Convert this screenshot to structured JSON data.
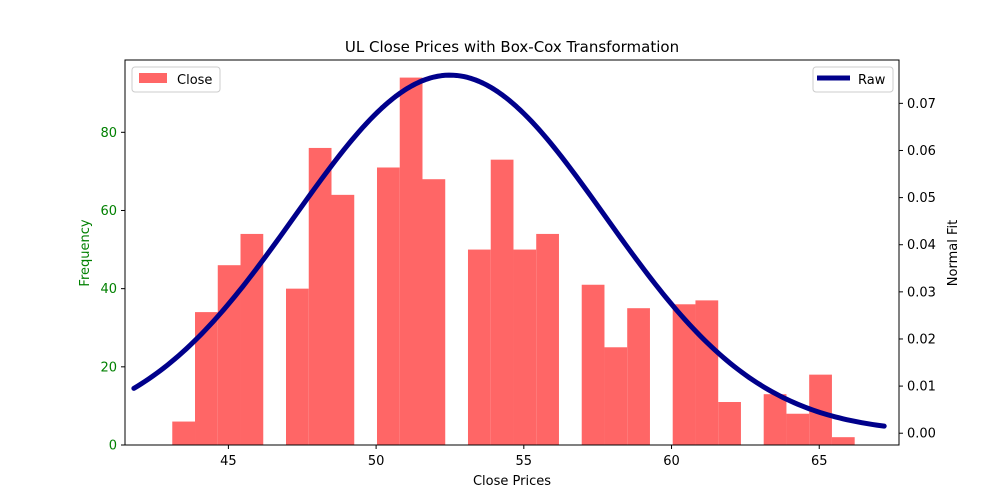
{
  "chart_data": {
    "type": "bar",
    "title": "UL Close Prices with Box-Cox Transformation",
    "xlabel": "Close Prices",
    "ylabel_left": "Frequency",
    "ylabel_right": "Normal Fit",
    "xlim": [
      41.5,
      67.7
    ],
    "ylim_left": [
      0,
      98.5
    ],
    "ylim_right": [
      -0.0025,
      0.0792
    ],
    "x_ticks": [
      45,
      50,
      55,
      60,
      65
    ],
    "y_ticks_left": [
      0,
      20,
      40,
      60,
      80
    ],
    "y_ticks_right": [
      0.0,
      0.01,
      0.02,
      0.03,
      0.04,
      0.05,
      0.06,
      0.07
    ],
    "y_tick_labels_right": [
      "0.00",
      "0.01",
      "0.02",
      "0.03",
      "0.04",
      "0.05",
      "0.06",
      "0.07"
    ],
    "left_axis_color": "#008000",
    "bin_width": 0.77,
    "histogram": {
      "name": "Close",
      "color": "#ff6666",
      "bins": [
        {
          "x0": 43.1,
          "count": 6
        },
        {
          "x0": 43.87,
          "count": 34
        },
        {
          "x0": 44.64,
          "count": 46
        },
        {
          "x0": 45.41,
          "count": 54
        },
        {
          "x0": 46.18,
          "count": 0
        },
        {
          "x0": 46.95,
          "count": 40
        },
        {
          "x0": 47.72,
          "count": 76
        },
        {
          "x0": 48.49,
          "count": 64
        },
        {
          "x0": 49.26,
          "count": 0
        },
        {
          "x0": 50.03,
          "count": 71
        },
        {
          "x0": 50.8,
          "count": 94
        },
        {
          "x0": 51.57,
          "count": 68
        },
        {
          "x0": 52.34,
          "count": 0
        },
        {
          "x0": 53.11,
          "count": 50
        },
        {
          "x0": 53.88,
          "count": 73
        },
        {
          "x0": 54.65,
          "count": 50
        },
        {
          "x0": 55.42,
          "count": 54
        },
        {
          "x0": 56.19,
          "count": 0
        },
        {
          "x0": 56.96,
          "count": 41
        },
        {
          "x0": 57.73,
          "count": 25
        },
        {
          "x0": 58.5,
          "count": 35
        },
        {
          "x0": 59.27,
          "count": 0
        },
        {
          "x0": 60.04,
          "count": 36
        },
        {
          "x0": 60.81,
          "count": 37
        },
        {
          "x0": 61.58,
          "count": 11
        },
        {
          "x0": 62.35,
          "count": 0
        },
        {
          "x0": 63.12,
          "count": 13
        },
        {
          "x0": 63.89,
          "count": 8
        },
        {
          "x0": 64.66,
          "count": 18
        },
        {
          "x0": 65.43,
          "count": 2
        }
      ]
    },
    "normal_fit": {
      "name": "Raw",
      "color": "#00008b",
      "mean": 52.5,
      "std": 5.25,
      "x_range": [
        41.8,
        67.2
      ]
    },
    "legend_left_position": "top-left",
    "legend_right_position": "top-right",
    "grid": false
  }
}
